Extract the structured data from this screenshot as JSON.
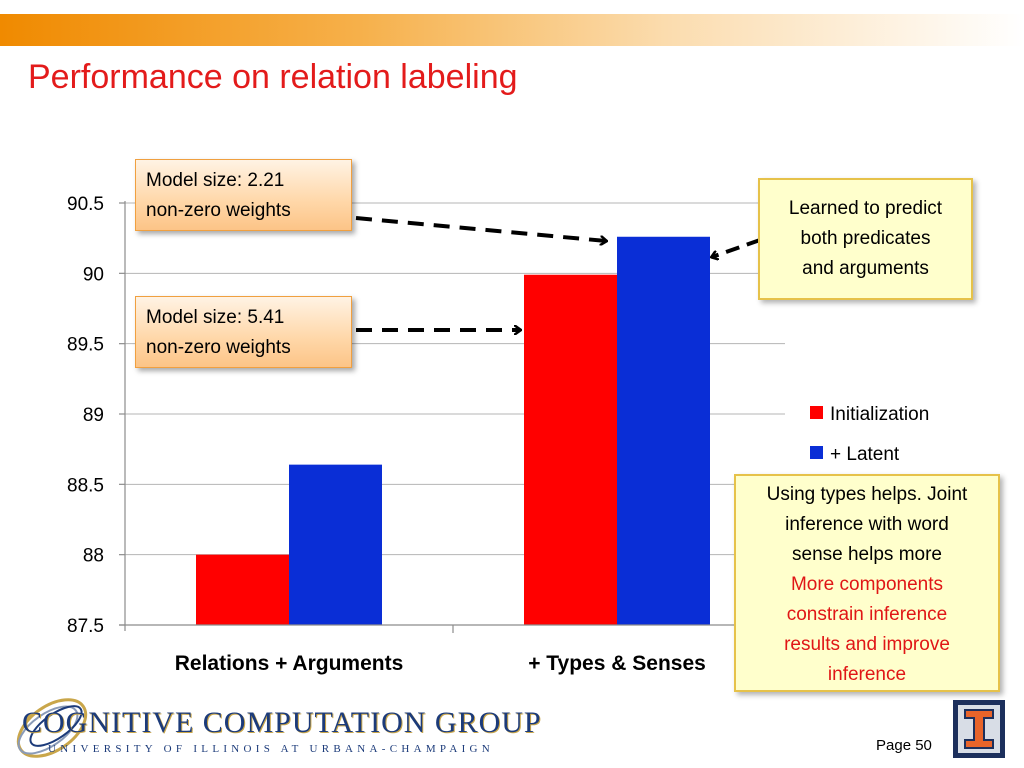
{
  "slide": {
    "title": "Performance on relation labeling",
    "page_label": "Page 50"
  },
  "logo": {
    "name": "COGNITIVE COMPUTATION GROUP",
    "subtitle": "UNIVERSITY OF ILLINOIS AT URBANA-CHAMPAIGN"
  },
  "colors": {
    "title": "#e31b1b",
    "initialization": "#ff0000",
    "latent": "#0a2ed6",
    "top_bar": "#f08a00"
  },
  "callouts": {
    "model_size_1": [
      "Model size: 2.21",
      "non-zero weights"
    ],
    "model_size_2": [
      "Model size: 5.41",
      "non-zero weights"
    ],
    "learned": [
      "Learned to predict",
      "both predicates",
      "and arguments"
    ],
    "types": [
      "Using types helps. Joint",
      "inference with word",
      "sense helps more"
    ],
    "components": [
      "More components",
      "constrain inference",
      "results and improve",
      "inference"
    ]
  },
  "chart_data": {
    "type": "bar",
    "categories": [
      "Relations + Arguments",
      "+ Types & Senses"
    ],
    "series": [
      {
        "name": "Initialization",
        "values": [
          88.0,
          89.99
        ]
      },
      {
        "name": "+ Latent",
        "values": [
          88.64,
          90.26
        ]
      }
    ],
    "yticks": [
      "87.5",
      "88",
      "88.5",
      "89",
      "89.5",
      "90",
      "90.5"
    ],
    "ylim": [
      87.5,
      90.5
    ],
    "grid": true,
    "legend": "right"
  }
}
